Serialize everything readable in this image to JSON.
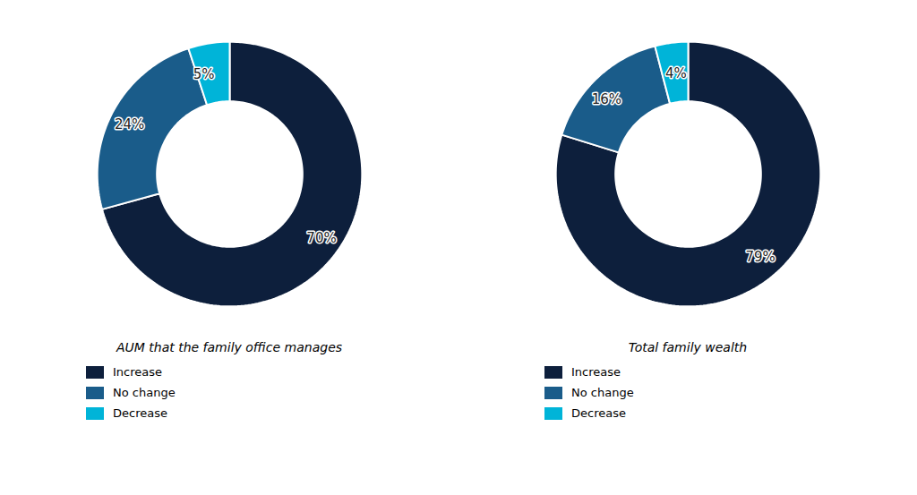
{
  "chart_data": [
    {
      "type": "donut",
      "title": "AUM that the family office manages",
      "categories": [
        "Increase",
        "No change",
        "Decrease"
      ],
      "values": [
        70,
        24,
        5
      ],
      "value_labels": [
        "70%",
        "24%",
        "5%"
      ],
      "colors": [
        "#0d1f3c",
        "#1a5c8a",
        "#00b4d8"
      ],
      "data_labels": true,
      "legend": "bottom"
    },
    {
      "type": "donut",
      "title": "Total family wealth",
      "categories": [
        "Increase",
        "No change",
        "Decrease"
      ],
      "values": [
        79,
        16,
        4
      ],
      "value_labels": [
        "79%",
        "16%",
        "4%"
      ],
      "colors": [
        "#0d1f3c",
        "#1a5c8a",
        "#00b4d8"
      ],
      "data_labels": true,
      "legend": "bottom"
    }
  ]
}
